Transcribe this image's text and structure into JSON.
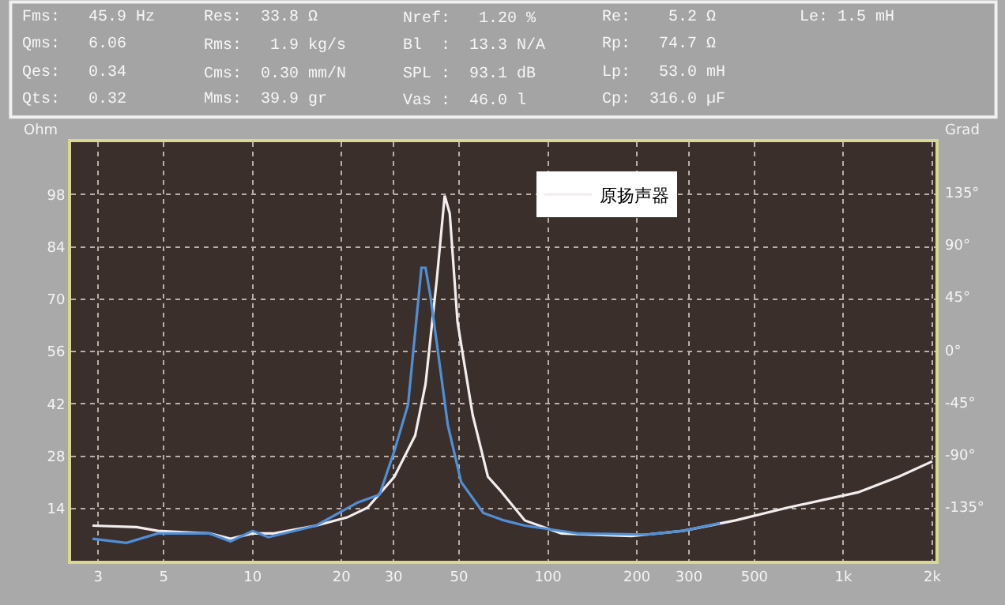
{
  "chart_data": {
    "type": "line",
    "ylabel": "Ohm",
    "y2label": "Grad",
    "annotations": [
      "Fms:   45.9 Hz",
      "Qms:   6.06",
      "Qes:   0.34",
      "Qts:   0.32",
      "Res:  33.8 Ω",
      "Rms:   1.9 kg/s",
      "Cms:  0.30 mm/N",
      "Mms:  39.9 gr",
      "Nref:   1.20 %",
      "Bl  :  13.3 N/A",
      "SPL :  93.1 dB",
      "Vas :  46.0 l",
      "Re:    5.2 Ω",
      "Rp:   74.7 Ω",
      "Lp:   53.0 mH",
      "Cp:  316.0 µF",
      "Le: 1.5 mH"
    ],
    "series": [
      {
        "name": "原扬声器",
        "color": "#f2eeee",
        "x": [
          2.87,
          4.05,
          4.78,
          7.16,
          8.42,
          10.0,
          11.7,
          16.4,
          20.9,
          24.5,
          30.2,
          35.5,
          38.5,
          42.0,
          44.7,
          46.5,
          49.4,
          55.6,
          62.6,
          68.6,
          83.5,
          111,
          192,
          286,
          431,
          647,
          1120,
          1540,
          2000
        ],
        "values": [
          9.4,
          9.0,
          8.0,
          7.3,
          5.9,
          7.3,
          7.3,
          9.4,
          11.6,
          14.2,
          22.5,
          33.5,
          47.3,
          75,
          97.7,
          92.9,
          63.9,
          39,
          22.5,
          19.0,
          10.8,
          7.3,
          6.6,
          8.0,
          10.8,
          14.2,
          18.3,
          22.5,
          26.6
        ]
      },
      {
        "color": "#4f8fd8",
        "x": [
          2.87,
          3.74,
          4.78,
          7.16,
          8.42,
          10.0,
          11.3,
          16.4,
          22.7,
          26.9,
          30.2,
          33.6,
          37.3,
          38.5,
          40.0,
          42.0,
          45.8,
          50.8,
          60.4,
          71.0,
          83.5,
          127,
          216,
          286,
          382
        ],
        "values": [
          5.9,
          4.8,
          7.3,
          7.3,
          5.2,
          8.0,
          6.3,
          9.4,
          15.6,
          17.7,
          29.4,
          41.8,
          78.4,
          78.4,
          70.8,
          58.4,
          36.3,
          21.1,
          12.8,
          10.8,
          9.4,
          7.3,
          7.0,
          8.0,
          10.1
        ]
      }
    ],
    "log": "x",
    "xlim": [
      2.43,
      2050
    ],
    "xticks": [
      3,
      5,
      10,
      20,
      30,
      50,
      100,
      200,
      300,
      500,
      {
        "value": 1000,
        "label": "1k"
      },
      {
        "value": 2000,
        "label": "2k"
      }
    ],
    "ylim": [
      0,
      112
    ],
    "yticks": [
      14,
      28,
      42,
      56,
      70,
      84,
      98
    ],
    "y2lim": [
      -180,
      180
    ],
    "y2ticks": [
      {
        "value": -135,
        "label": "-135°"
      },
      {
        "value": -90,
        "label": "-90°"
      },
      {
        "value": -45,
        "label": "-45°"
      },
      {
        "value": 0,
        "label": "0°"
      },
      {
        "value": 45,
        "label": "45°"
      },
      {
        "value": 90,
        "label": "90°"
      },
      {
        "value": 135,
        "label": "135°"
      }
    ],
    "grid": true,
    "legend": "top",
    "marker": "none",
    "line_style": "solid"
  }
}
